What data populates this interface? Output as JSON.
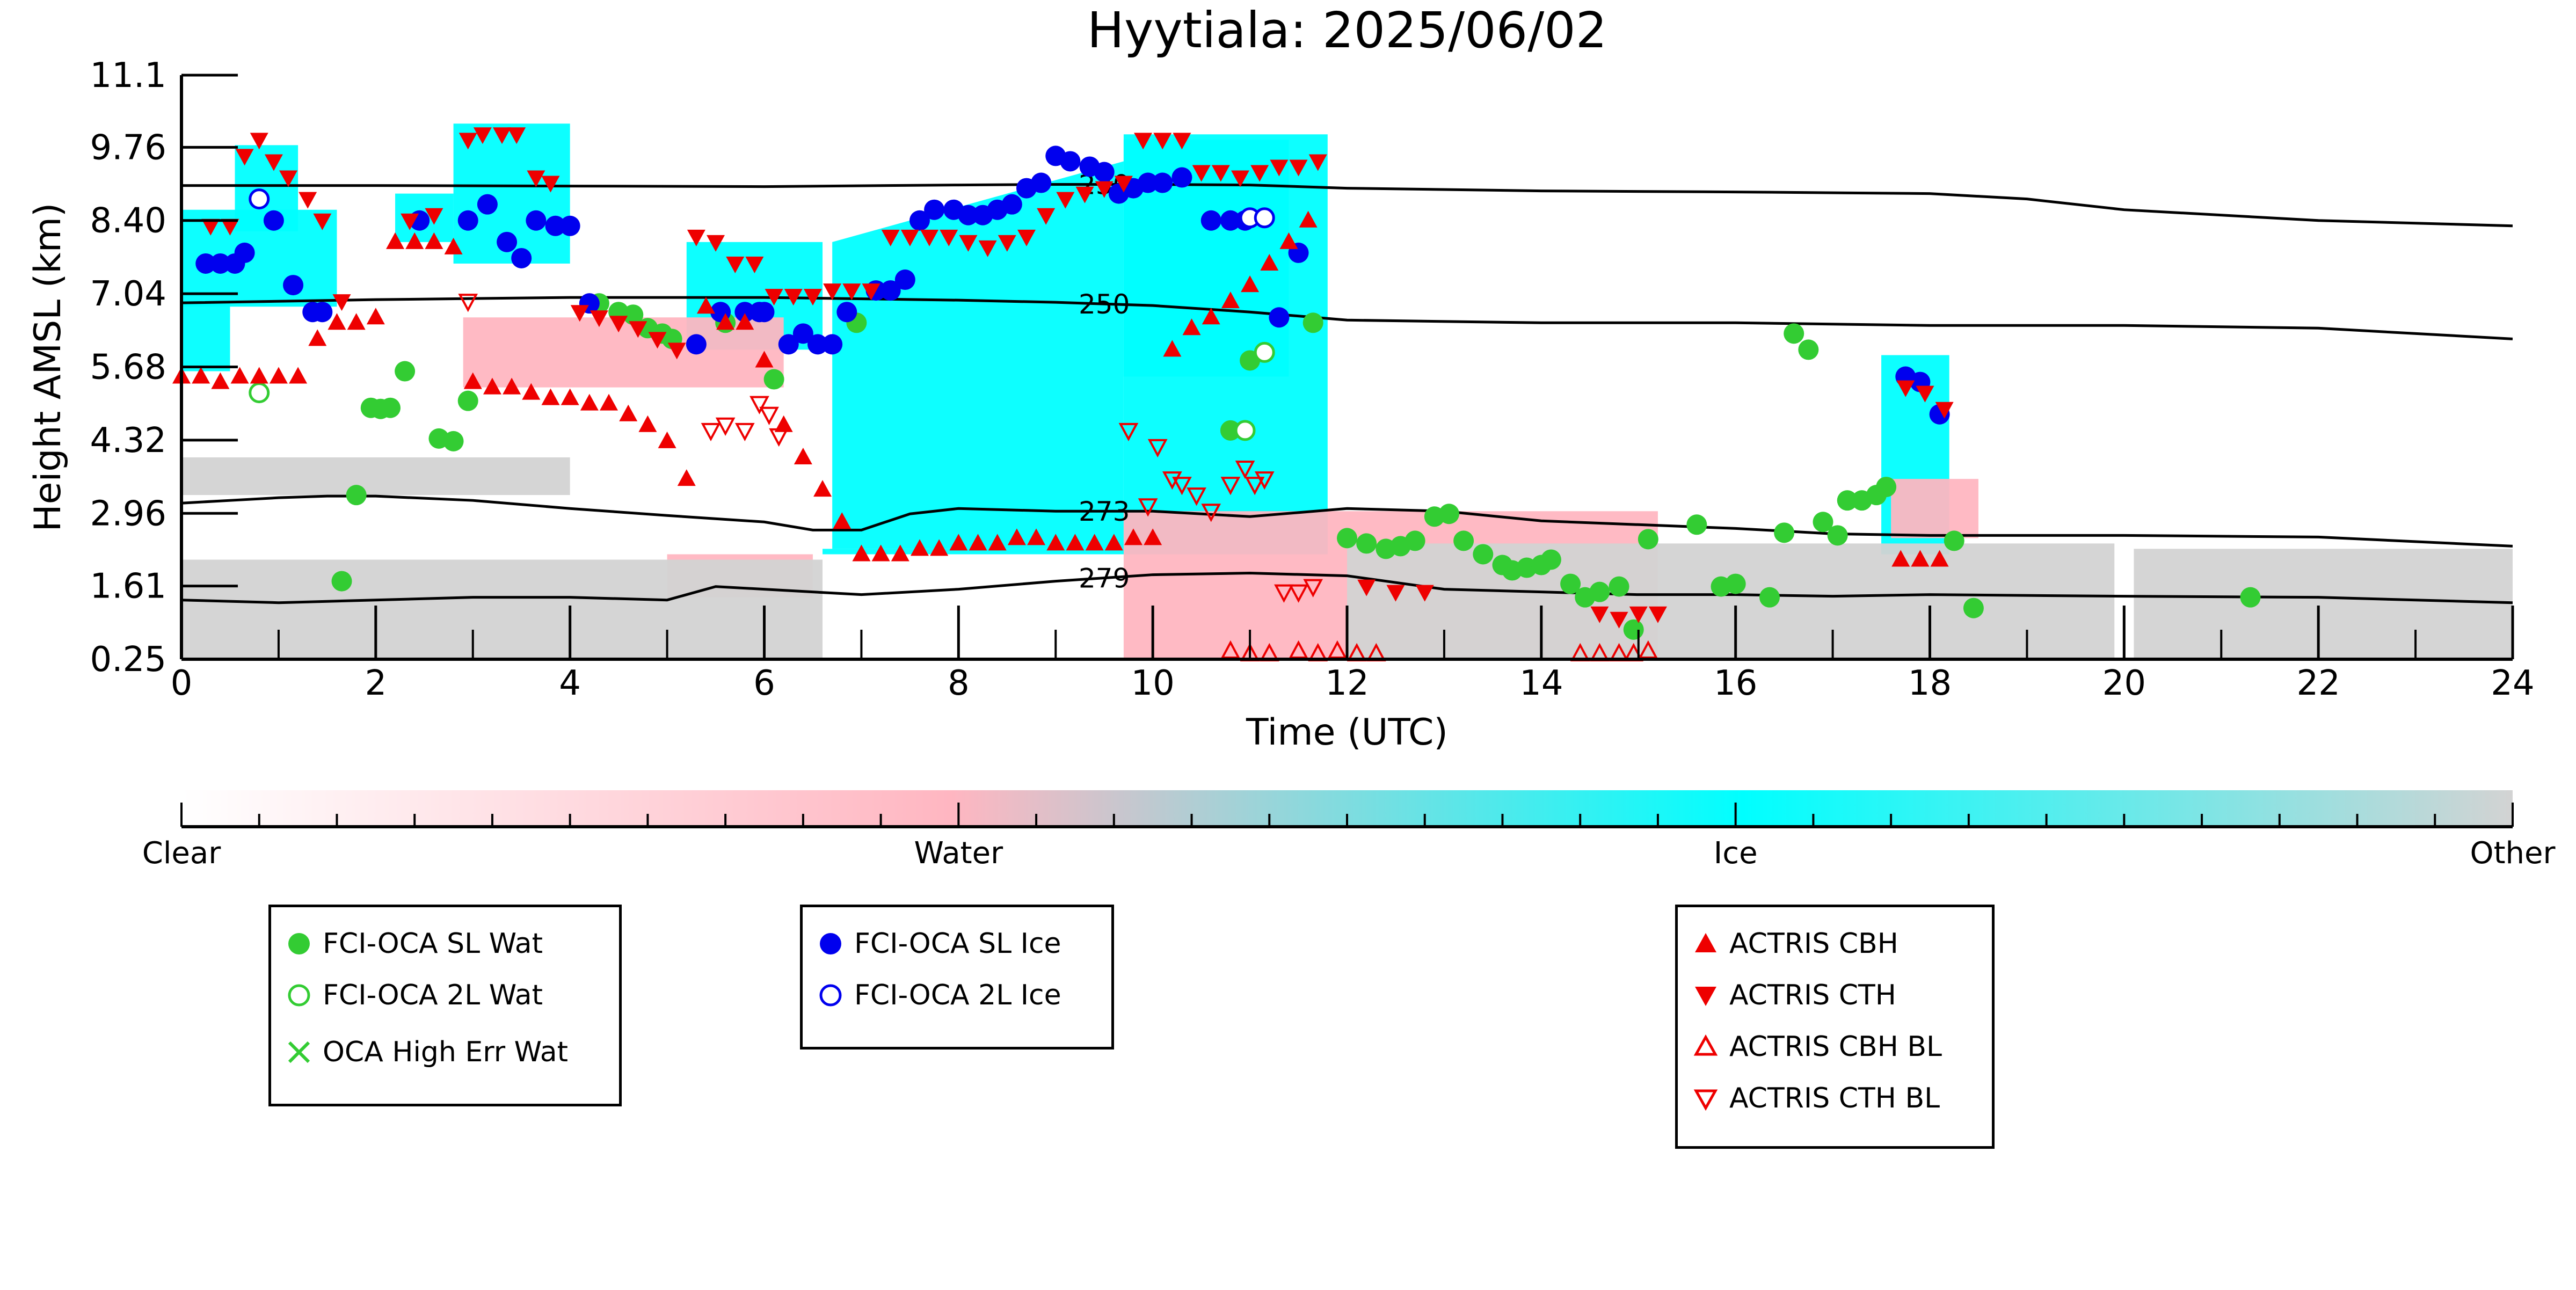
{
  "chart_data": {
    "type": "scatter",
    "title": "Hyytiala: 2025/06/02",
    "xlabel": "Time (UTC)",
    "ylabel": "Height AMSL (km)",
    "xlim": [
      0,
      24
    ],
    "ylim": [
      0.25,
      11.1
    ],
    "x_ticks": [
      0,
      2,
      4,
      6,
      8,
      10,
      12,
      14,
      16,
      18,
      20,
      22,
      24
    ],
    "x_tick_labels": [
      "0",
      "2",
      "4",
      "6",
      "8",
      "10",
      "12",
      "14",
      "16",
      "18",
      "20",
      "22",
      "24"
    ],
    "y_ticks": [
      0.25,
      1.61,
      2.96,
      4.32,
      5.68,
      7.04,
      8.4,
      9.76,
      11.1
    ],
    "y_tick_labels": [
      "0.25",
      "1.61",
      "2.96",
      "4.32",
      "5.68",
      "7.04",
      "8.40",
      "9.76",
      "11.1"
    ],
    "grid": false,
    "colorbar": {
      "labels": [
        "Clear",
        "Water",
        "Ice",
        "Other"
      ],
      "colors": [
        "#ffffff",
        "#ffb6c1",
        "#00ffff",
        "#d3d3d3"
      ]
    },
    "isotherms": [
      {
        "label": "230",
        "label_x": 9.5,
        "x": [
          0,
          2,
          4,
          6,
          8,
          9,
          10,
          11,
          12,
          14,
          16,
          18,
          19,
          20,
          22,
          24
        ],
        "y": [
          9.05,
          9.05,
          9.04,
          9.03,
          9.06,
          9.07,
          9.07,
          9.06,
          9.0,
          8.95,
          8.93,
          8.9,
          8.8,
          8.6,
          8.4,
          8.3
        ]
      },
      {
        "label": "250",
        "label_x": 9.5,
        "x": [
          0,
          2,
          4,
          6,
          8,
          9,
          10,
          11,
          12,
          14,
          16,
          18,
          20,
          22,
          24
        ],
        "y": [
          6.87,
          6.93,
          6.97,
          6.97,
          6.92,
          6.88,
          6.82,
          6.7,
          6.55,
          6.5,
          6.5,
          6.45,
          6.45,
          6.4,
          6.2
        ]
      },
      {
        "label": "273",
        "label_x": 9.5,
        "x": [
          0,
          0.5,
          1,
          1.5,
          2,
          3,
          4,
          5,
          6,
          6.5,
          7,
          7.5,
          8,
          9,
          10,
          11,
          12,
          13,
          14,
          15,
          16,
          17,
          18,
          20,
          22,
          24
        ],
        "y": [
          3.15,
          3.2,
          3.25,
          3.28,
          3.28,
          3.2,
          3.05,
          2.92,
          2.8,
          2.65,
          2.65,
          2.95,
          3.05,
          3.0,
          3.0,
          2.9,
          3.05,
          3.0,
          2.82,
          2.75,
          2.68,
          2.58,
          2.55,
          2.55,
          2.52,
          2.35
        ]
      },
      {
        "label": "279",
        "label_x": 9.5,
        "x": [
          0,
          1,
          2,
          3,
          4,
          5,
          5.5,
          6,
          7,
          8,
          9,
          10,
          11,
          12,
          13,
          14,
          15,
          16,
          17,
          18,
          20,
          22,
          24
        ],
        "y": [
          1.35,
          1.3,
          1.35,
          1.4,
          1.4,
          1.35,
          1.6,
          1.55,
          1.45,
          1.55,
          1.7,
          1.82,
          1.85,
          1.8,
          1.55,
          1.5,
          1.45,
          1.45,
          1.42,
          1.45,
          1.42,
          1.4,
          1.3
        ]
      }
    ],
    "cloud_regions": [
      {
        "phase": "Ice",
        "x": [
          0.0,
          1.6,
          1.6,
          0.0
        ],
        "y": [
          6.8,
          6.8,
          8.6,
          8.6
        ]
      },
      {
        "phase": "Ice",
        "x": [
          0.55,
          1.2,
          1.2,
          0.55
        ],
        "y": [
          8.2,
          8.2,
          9.8,
          9.8
        ]
      },
      {
        "phase": "Ice",
        "x": [
          2.2,
          2.8,
          2.8,
          2.2
        ],
        "y": [
          8.0,
          8.0,
          8.9,
          8.9
        ]
      },
      {
        "phase": "Ice",
        "x": [
          2.8,
          4.0,
          4.0,
          2.8
        ],
        "y": [
          7.6,
          7.6,
          10.2,
          10.2
        ]
      },
      {
        "phase": "Ice",
        "x": [
          5.2,
          6.6,
          6.6,
          5.2
        ],
        "y": [
          6.0,
          6.0,
          8.0,
          8.0
        ]
      },
      {
        "phase": "Ice",
        "x": [
          6.6,
          11.8,
          11.8,
          9.7,
          9.7,
          6.6
        ],
        "y": [
          2.2,
          2.2,
          10.0,
          10.0,
          2.3,
          2.3
        ]
      },
      {
        "phase": "Ice",
        "x": [
          6.7,
          9.7,
          9.7,
          6.7
        ],
        "y": [
          2.3,
          2.3,
          9.5,
          8.0
        ]
      },
      {
        "phase": "Ice",
        "x": [
          9.7,
          11.4,
          11.4,
          9.7
        ],
        "y": [
          5.5,
          5.5,
          9.9,
          9.9
        ]
      },
      {
        "phase": "Ice",
        "x": [
          17.5,
          18.2,
          18.2,
          17.5
        ],
        "y": [
          2.2,
          2.2,
          5.9,
          5.9
        ]
      },
      {
        "phase": "Ice",
        "x": [
          0.0,
          0.5,
          0.5,
          0.0
        ],
        "y": [
          5.6,
          5.6,
          6.9,
          6.9
        ]
      },
      {
        "phase": "Water",
        "x": [
          2.9,
          6.2,
          6.2,
          2.9
        ],
        "y": [
          5.3,
          5.3,
          6.6,
          6.6
        ]
      },
      {
        "phase": "Water",
        "x": [
          9.7,
          15.2,
          15.2,
          9.7
        ],
        "y": [
          0.25,
          0.25,
          3.0,
          3.0
        ]
      },
      {
        "phase": "Water",
        "x": [
          5.0,
          6.5,
          6.5,
          5.0
        ],
        "y": [
          1.4,
          1.4,
          2.2,
          2.2
        ]
      },
      {
        "phase": "Water",
        "x": [
          17.6,
          18.5,
          18.5,
          17.6
        ],
        "y": [
          2.5,
          2.5,
          3.6,
          3.6
        ]
      },
      {
        "phase": "Other",
        "x": [
          0.0,
          6.6,
          6.6,
          0.0
        ],
        "y": [
          0.25,
          0.25,
          2.1,
          2.1
        ]
      },
      {
        "phase": "Other",
        "x": [
          0.0,
          4.0,
          4.0,
          0.0
        ],
        "y": [
          3.3,
          3.3,
          4.0,
          4.0
        ]
      },
      {
        "phase": "Other",
        "x": [
          12.0,
          19.9,
          19.9,
          12.0
        ],
        "y": [
          0.25,
          0.25,
          2.4,
          2.4
        ]
      },
      {
        "phase": "Other",
        "x": [
          20.1,
          24.0,
          24.0,
          20.1
        ],
        "y": [
          0.25,
          0.25,
          2.3,
          2.3
        ]
      }
    ],
    "series": [
      {
        "name": "FCI-OCA SL Wat",
        "marker": "filled-circle",
        "color": "#33cc33",
        "x": [
          1.65,
          1.8,
          1.95,
          2.05,
          2.15,
          2.3,
          2.65,
          2.8,
          2.95,
          4.3,
          4.5,
          4.65,
          4.8,
          4.95,
          5.05,
          5.6,
          6.1,
          6.95,
          12.0,
          12.2,
          12.4,
          12.55,
          12.7,
          12.9,
          13.05,
          13.2,
          13.4,
          13.6,
          13.7,
          13.85,
          14.0,
          14.1,
          14.3,
          14.45,
          14.6,
          14.8,
          14.95,
          15.1,
          15.6,
          15.85,
          16.0,
          16.35,
          16.5,
          16.6,
          16.75,
          16.9,
          17.05,
          17.15,
          17.3,
          17.45,
          17.55,
          18.25,
          18.45,
          21.3,
          11.65,
          11.0,
          10.8
        ],
        "y": [
          1.7,
          3.3,
          4.92,
          4.9,
          4.92,
          5.6,
          4.35,
          4.3,
          5.05,
          6.86,
          6.7,
          6.65,
          6.4,
          6.3,
          6.2,
          6.5,
          5.45,
          6.5,
          2.5,
          2.4,
          2.3,
          2.35,
          2.45,
          2.9,
          2.95,
          2.45,
          2.2,
          2.0,
          1.9,
          1.95,
          2.0,
          2.1,
          1.65,
          1.4,
          1.5,
          1.6,
          0.8,
          2.48,
          2.75,
          1.6,
          1.65,
          1.4,
          2.6,
          6.3,
          6.0,
          2.8,
          2.55,
          3.2,
          3.2,
          3.3,
          3.45,
          2.45,
          1.2,
          1.4,
          6.5,
          5.8,
          4.5
        ]
      },
      {
        "name": "FCI-OCA 2L Wat",
        "marker": "open-circle",
        "color": "#33cc33",
        "x": [
          0.8,
          10.95,
          11.15
        ],
        "y": [
          5.2,
          4.5,
          5.95
        ]
      },
      {
        "name": "OCA High Err Wat",
        "marker": "x",
        "color": "#33cc33",
        "x": [],
        "y": []
      },
      {
        "name": "FCI-OCA SL Ice",
        "marker": "filled-circle",
        "color": "#0000ee",
        "x": [
          0.25,
          0.4,
          0.55,
          0.65,
          0.8,
          0.95,
          1.15,
          1.35,
          1.45,
          2.45,
          2.95,
          3.15,
          3.35,
          3.5,
          3.65,
          3.85,
          4.0,
          4.2,
          5.3,
          5.55,
          5.8,
          5.95,
          6.0,
          6.25,
          6.4,
          6.55,
          6.7,
          6.85,
          7.15,
          7.3,
          7.45,
          7.6,
          7.75,
          7.95,
          8.1,
          8.25,
          8.4,
          8.55,
          8.7,
          8.85,
          9.0,
          9.15,
          9.35,
          9.5,
          9.65,
          9.8,
          9.95,
          10.1,
          10.3,
          10.6,
          10.8,
          10.95,
          11.3,
          11.5,
          17.75,
          17.9,
          18.1
        ],
        "y": [
          7.6,
          7.6,
          7.6,
          7.8,
          8.8,
          8.4,
          7.2,
          6.7,
          6.7,
          8.4,
          8.4,
          8.7,
          8.0,
          7.7,
          8.4,
          8.3,
          8.3,
          6.86,
          6.1,
          6.7,
          6.7,
          6.7,
          6.7,
          6.1,
          6.3,
          6.1,
          6.1,
          6.7,
          7.1,
          7.1,
          7.3,
          8.4,
          8.6,
          8.6,
          8.5,
          8.5,
          8.6,
          8.7,
          9.0,
          9.1,
          9.6,
          9.5,
          9.4,
          9.3,
          8.9,
          9.0,
          9.1,
          9.1,
          9.2,
          8.4,
          8.4,
          8.4,
          6.6,
          7.8,
          5.5,
          5.4,
          4.8
        ]
      },
      {
        "name": "FCI-OCA 2L Ice",
        "marker": "open-circle",
        "color": "#0000ee",
        "x": [
          0.8,
          11.0,
          11.15
        ],
        "y": [
          8.8,
          8.45,
          8.45
        ]
      },
      {
        "name": "ACTRIS CBH",
        "marker": "triangle-up-filled",
        "color": "#ee0000",
        "x": [
          0.0,
          0.2,
          0.4,
          0.6,
          0.8,
          1.0,
          1.2,
          1.4,
          1.6,
          1.8,
          2.0,
          2.2,
          2.4,
          2.6,
          2.8,
          3.0,
          3.2,
          3.4,
          3.6,
          3.8,
          4.0,
          4.2,
          4.4,
          4.6,
          4.8,
          5.0,
          5.2,
          5.4,
          5.6,
          5.8,
          6.0,
          6.2,
          6.4,
          6.6,
          6.8,
          7.0,
          7.2,
          7.4,
          7.6,
          7.8,
          8.0,
          8.2,
          8.4,
          8.6,
          8.8,
          9.0,
          9.2,
          9.4,
          9.6,
          9.8,
          10.0,
          10.2,
          10.4,
          10.6,
          10.8,
          11.0,
          11.2,
          11.4,
          11.6,
          17.7,
          17.9,
          18.1
        ],
        "y": [
          5.5,
          5.5,
          5.4,
          5.5,
          5.5,
          5.5,
          5.5,
          6.2,
          6.5,
          6.5,
          6.6,
          8.0,
          8.0,
          8.0,
          7.9,
          5.4,
          5.3,
          5.3,
          5.2,
          5.1,
          5.1,
          5.0,
          5.0,
          4.8,
          4.6,
          4.3,
          3.6,
          6.8,
          6.5,
          6.5,
          5.8,
          4.6,
          4.0,
          3.4,
          2.8,
          2.2,
          2.2,
          2.2,
          2.3,
          2.3,
          2.4,
          2.4,
          2.4,
          2.5,
          2.5,
          2.4,
          2.4,
          2.4,
          2.4,
          2.5,
          2.5,
          6.0,
          6.4,
          6.6,
          6.9,
          7.2,
          7.6,
          8.0,
          8.4,
          2.1,
          2.1,
          2.1
        ]
      },
      {
        "name": "ACTRIS CTH",
        "marker": "triangle-down-filled",
        "color": "#ee0000",
        "x": [
          0.3,
          0.5,
          0.65,
          0.8,
          0.95,
          1.1,
          1.3,
          1.45,
          1.65,
          2.35,
          2.6,
          2.95,
          3.1,
          3.3,
          3.45,
          3.65,
          3.8,
          4.1,
          4.3,
          4.5,
          4.7,
          4.9,
          5.1,
          5.3,
          5.5,
          5.7,
          5.9,
          6.1,
          6.3,
          6.5,
          6.7,
          6.9,
          7.1,
          7.3,
          7.5,
          7.7,
          7.9,
          8.1,
          8.3,
          8.5,
          8.7,
          8.9,
          9.1,
          9.3,
          9.5,
          9.7,
          9.9,
          10.1,
          10.3,
          10.5,
          10.7,
          10.9,
          11.1,
          11.3,
          11.5,
          11.7,
          12.2,
          12.5,
          12.8,
          14.6,
          14.8,
          15.0,
          15.2,
          17.75,
          17.95,
          18.15
        ],
        "y": [
          8.3,
          8.3,
          9.6,
          9.9,
          9.5,
          9.2,
          8.8,
          8.4,
          6.9,
          8.4,
          8.5,
          9.9,
          10.0,
          10.0,
          10.0,
          9.2,
          9.1,
          6.7,
          6.6,
          6.5,
          6.4,
          6.2,
          6.0,
          8.1,
          8.0,
          7.6,
          7.6,
          7.0,
          7.0,
          7.0,
          7.1,
          7.1,
          7.1,
          8.1,
          8.1,
          8.1,
          8.1,
          8.0,
          7.9,
          8.0,
          8.1,
          8.5,
          8.8,
          8.9,
          9.0,
          9.1,
          9.9,
          9.9,
          9.9,
          9.3,
          9.3,
          9.2,
          9.3,
          9.4,
          9.4,
          9.5,
          1.6,
          1.5,
          1.5,
          1.1,
          1.0,
          1.1,
          1.1,
          5.3,
          5.2,
          4.9
        ]
      },
      {
        "name": "ACTRIS CBH BL",
        "marker": "triangle-up-open",
        "color": "#ee0000",
        "x": [
          10.8,
          11.0,
          11.2,
          11.5,
          11.7,
          11.9,
          12.1,
          12.3,
          14.4,
          14.6,
          14.8,
          14.95,
          15.1
        ],
        "y": [
          0.4,
          0.35,
          0.35,
          0.4,
          0.35,
          0.4,
          0.35,
          0.35,
          0.35,
          0.35,
          0.35,
          0.35,
          0.4
        ]
      },
      {
        "name": "ACTRIS CTH BL",
        "marker": "triangle-down-open",
        "color": "#ee0000",
        "x": [
          2.95,
          5.45,
          5.6,
          5.8,
          5.95,
          6.05,
          6.15,
          9.75,
          10.05,
          10.2,
          10.3,
          10.45,
          10.6,
          10.8,
          10.95,
          11.05,
          11.15,
          11.35,
          11.5,
          11.65,
          9.95
        ],
        "y": [
          6.9,
          4.5,
          4.6,
          4.5,
          5.0,
          4.8,
          4.4,
          4.5,
          4.2,
          3.6,
          3.5,
          3.3,
          3.0,
          3.5,
          3.8,
          3.5,
          3.6,
          1.5,
          1.5,
          1.6,
          3.1
        ]
      }
    ],
    "legends": [
      {
        "entries": [
          "FCI-OCA SL Wat",
          "FCI-OCA 2L Wat",
          "OCA High Err Wat"
        ]
      },
      {
        "entries": [
          "FCI-OCA SL Ice",
          "FCI-OCA 2L Ice"
        ]
      },
      {
        "entries": [
          "ACTRIS CBH",
          "ACTRIS CTH",
          "ACTRIS CBH BL",
          "ACTRIS CTH BL"
        ]
      }
    ]
  }
}
